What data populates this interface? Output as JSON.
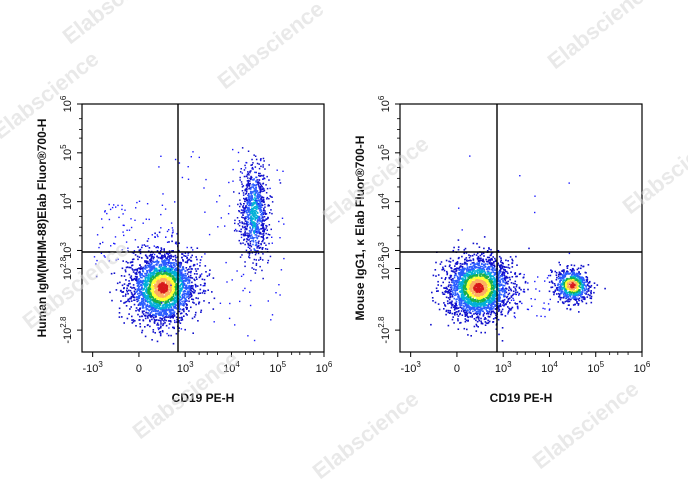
{
  "watermark": "Elabscience",
  "chart_data": [
    {
      "type": "scatter",
      "xlabel": "CD19 PE-H",
      "ylabel": "Human IgM(MHM-88)Elab Fluor®700-H",
      "x_ticks": [
        {
          "base": "-10",
          "exp": "3",
          "value": -1000
        },
        {
          "base": "0",
          "exp": "",
          "value": 0
        },
        {
          "base": "10",
          "exp": "3",
          "value": 1000
        },
        {
          "base": "10",
          "exp": "4",
          "value": 10000
        },
        {
          "base": "10",
          "exp": "5",
          "value": 100000
        },
        {
          "base": "10",
          "exp": "6",
          "value": 1000000
        }
      ],
      "y_ticks": [
        {
          "base": "-10",
          "exp": "2.8",
          "value": -631
        },
        {
          "base": "10",
          "exp": "2.8",
          "value": 631
        },
        {
          "base": "10",
          "exp": "3",
          "value": 1000
        },
        {
          "base": "10",
          "exp": "4",
          "value": 10000
        },
        {
          "base": "10",
          "exp": "5",
          "value": 100000
        },
        {
          "base": "10",
          "exp": "6",
          "value": 1000000
        }
      ],
      "gate": {
        "x": 1800,
        "y": 1650
      },
      "populations": [
        {
          "name": "",
          "x_center": 500,
          "y_center": 250,
          "spread": "dense"
        },
        {
          "name": "",
          "x_center": 30000,
          "y_center": 12000,
          "spread": "elongated-vertical"
        }
      ]
    },
    {
      "type": "scatter",
      "xlabel": "CD19 PE-H",
      "ylabel": "Mouse IgG1, κ Elab Fluor®700-H",
      "x_ticks": [
        {
          "base": "-10",
          "exp": "3",
          "value": -1000
        },
        {
          "base": "0",
          "exp": "",
          "value": 0
        },
        {
          "base": "10",
          "exp": "3",
          "value": 1000
        },
        {
          "base": "10",
          "exp": "4",
          "value": 10000
        },
        {
          "base": "10",
          "exp": "5",
          "value": 100000
        },
        {
          "base": "10",
          "exp": "6",
          "value": 1000000
        }
      ],
      "y_ticks": [
        {
          "base": "-10",
          "exp": "2.8",
          "value": -631
        },
        {
          "base": "10",
          "exp": "2.8",
          "value": 631
        },
        {
          "base": "10",
          "exp": "3",
          "value": 1000
        },
        {
          "base": "10",
          "exp": "4",
          "value": 10000
        },
        {
          "base": "10",
          "exp": "5",
          "value": 100000
        },
        {
          "base": "10",
          "exp": "6",
          "value": 1000000
        }
      ],
      "gate": {
        "x": 1800,
        "y": 1650
      },
      "populations": [
        {
          "name": "",
          "x_center": 450,
          "y_center": 250,
          "spread": "dense"
        },
        {
          "name": "",
          "x_center": 30000,
          "y_center": 300,
          "spread": "compact"
        }
      ]
    }
  ]
}
